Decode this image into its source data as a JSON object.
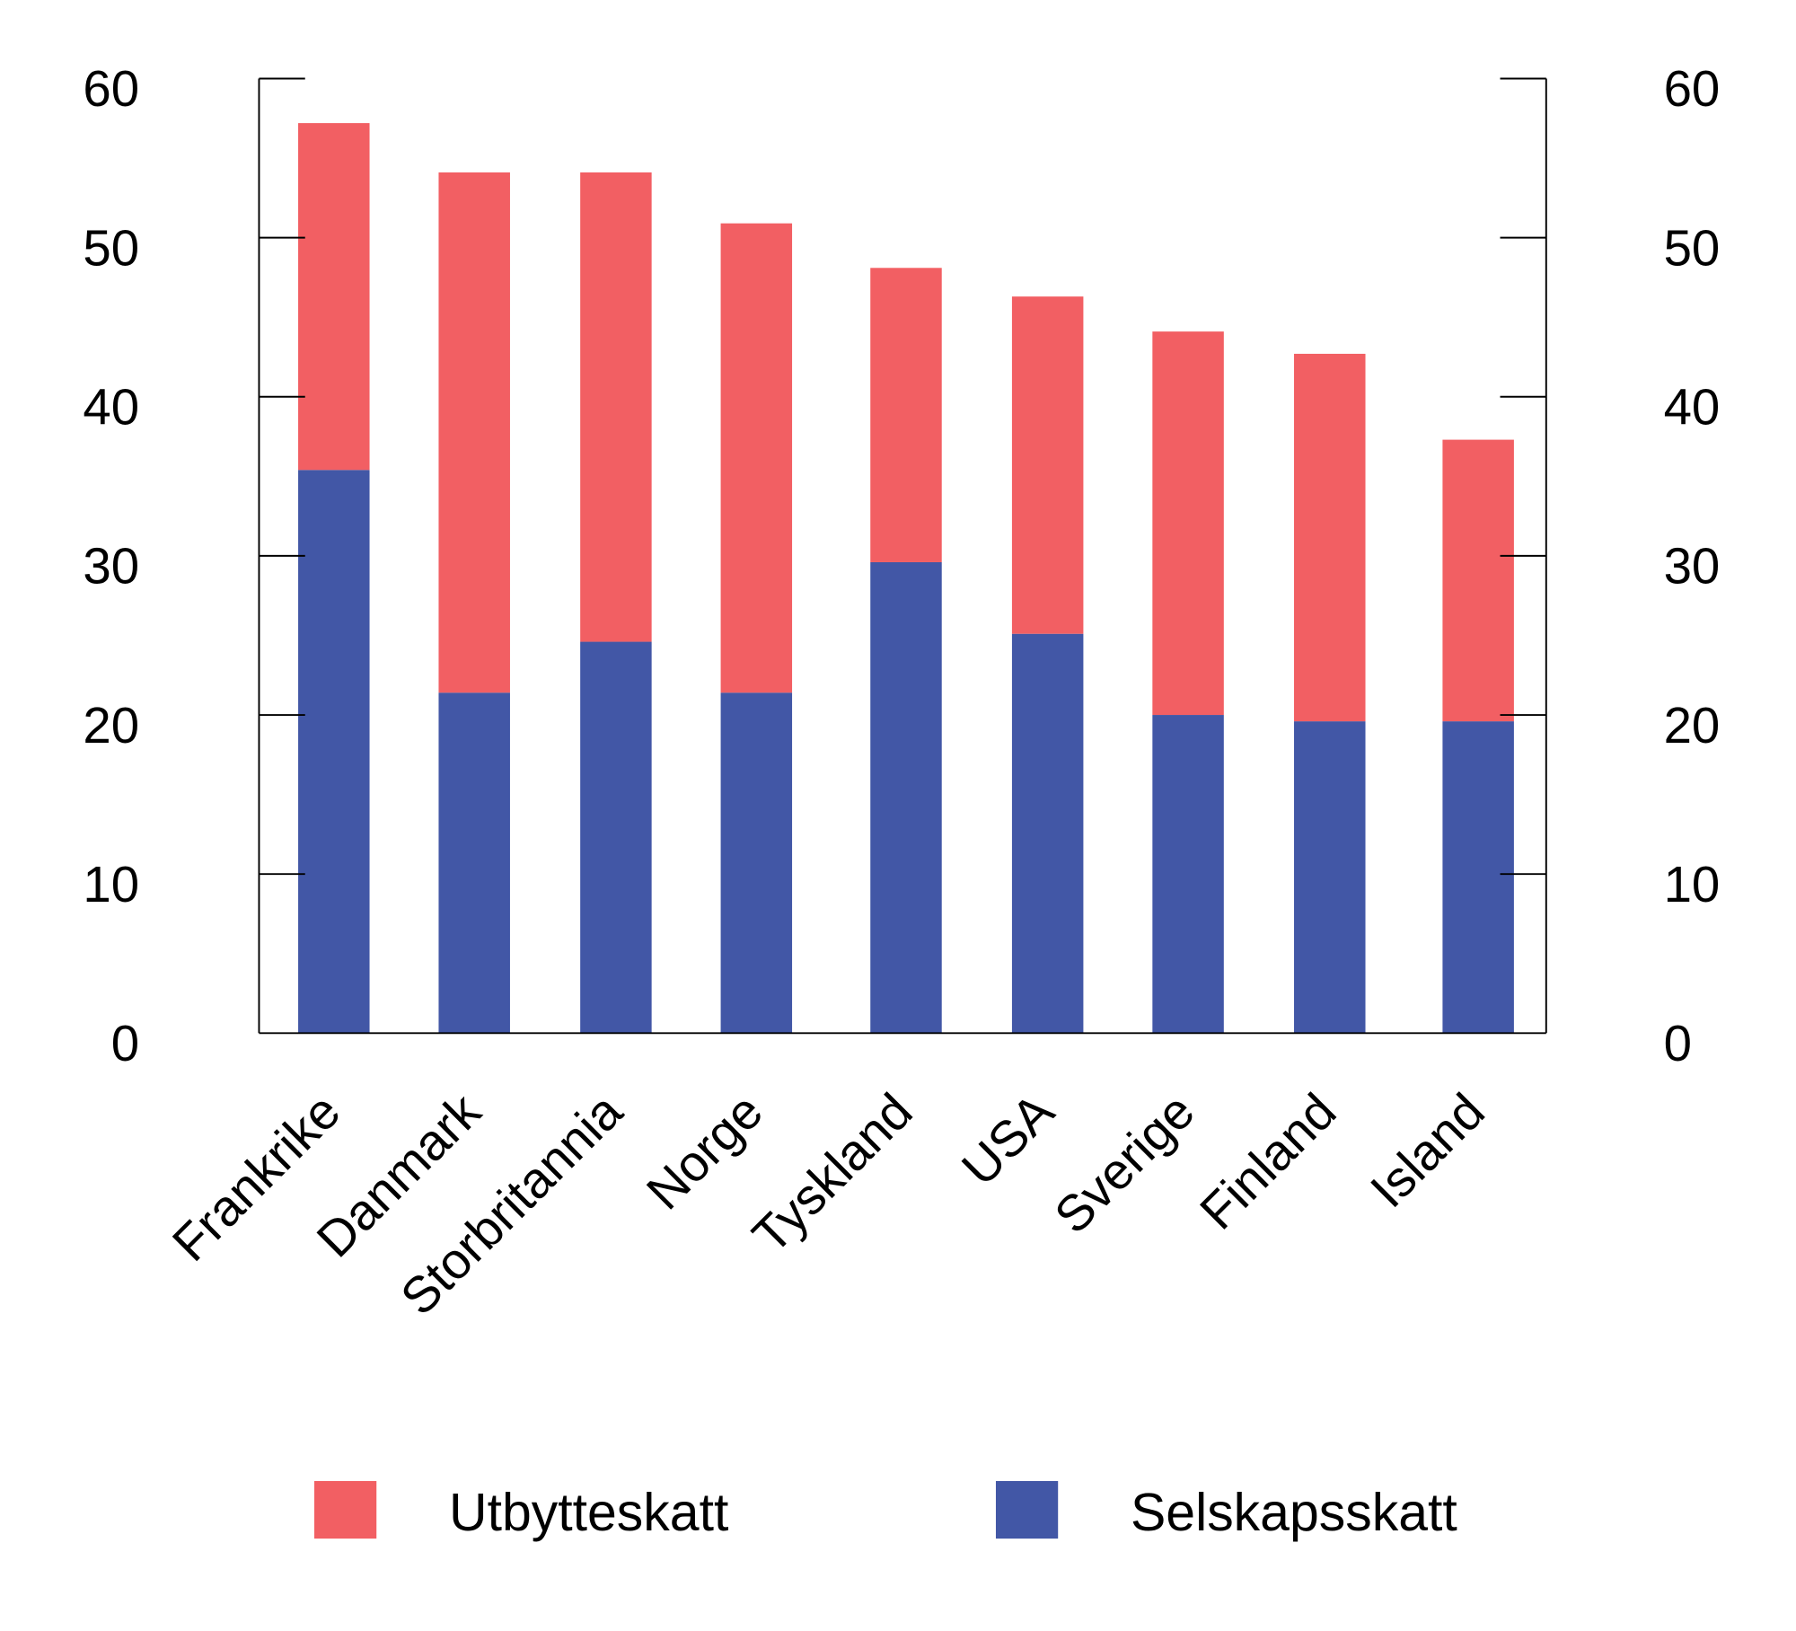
{
  "chart_data": {
    "type": "bar",
    "stacked": true,
    "categories": [
      "Frankrike",
      "Danmark",
      "Storbritannia",
      "Norge",
      "Tyskland",
      "USA",
      "Sverige",
      "Finland",
      "Island"
    ],
    "series": [
      {
        "name": "Selskapsskatt",
        "color": "#4257a6",
        "values": [
          35.4,
          21.4,
          24.6,
          21.4,
          29.6,
          25.1,
          20.0,
          19.6,
          19.6
        ]
      },
      {
        "name": "Utbytteskatt",
        "color": "#f25f63",
        "values": [
          21.8,
          32.7,
          29.5,
          29.5,
          18.5,
          21.2,
          24.1,
          23.1,
          17.7
        ]
      }
    ],
    "yticks": [
      "0",
      "10",
      "20",
      "30",
      "40",
      "50",
      "60"
    ],
    "ylim": [
      0,
      60
    ],
    "secondary_y_axis": true,
    "grid": false,
    "legend": {
      "placement": "bottom",
      "items": [
        "Utbytteskatt",
        "Selskapsskatt"
      ]
    }
  }
}
